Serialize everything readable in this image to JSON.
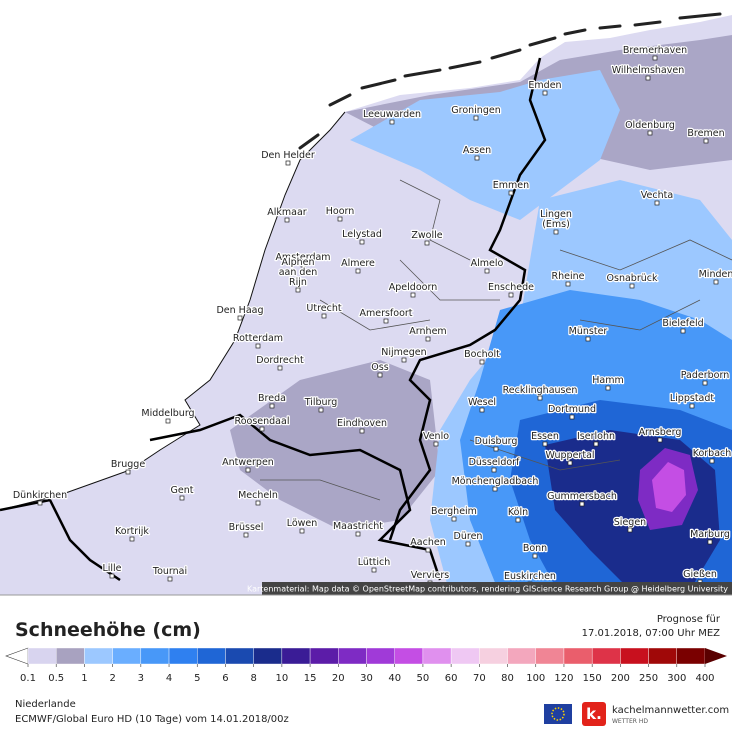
{
  "map": {
    "cities": [
      "Bremerhaven",
      "Wilhelmshaven",
      "Emden",
      "Leeuwarden",
      "Groningen",
      "Oldenburg",
      "Bremen",
      "Den Helder",
      "Assen",
      "Emmen",
      "Vechta",
      "Alkmaar",
      "Hoorn",
      [
        "Lingen",
        "(Ems)"
      ],
      "Lelystad",
      "Zwolle",
      "Amsterdam",
      "Almere",
      "Almelo",
      "Rheine",
      "Osnabrück",
      "Minden",
      [
        "Alphen",
        "aan den",
        "Rijn"
      ],
      "Apeldoorn",
      "Enschede",
      "Den Haag",
      "Utrecht",
      "Amersfoort",
      "Bielefeld",
      "Arnhem",
      "Münster",
      "Rotterdam",
      "Nijmegen",
      "Bocholt",
      "Dordrecht",
      "Oss",
      "Paderborn",
      "Hamm",
      "Recklinghausen",
      "Wesel",
      "Lippstadt",
      "Middelburg",
      "Breda",
      "Tilburg",
      "Dortmund",
      "Roosendaal",
      "Eindhoven",
      "Arnsberg",
      "Essen",
      "Iserlohn",
      "Venlo",
      "Duisburg",
      "Korbach",
      "Düsseldorf",
      "Wuppertal",
      "Brugge",
      "Antwerpen",
      "Mönchengladbach",
      "Gent",
      "Mecheln",
      "Gummersbach",
      "Dünkirchen",
      "Bergheim",
      "Köln",
      "Siegen",
      "Kortrijk",
      "Brüssel",
      "Löwen",
      "Maastricht",
      "Düren",
      "Marburg",
      "Aachen",
      "Bonn",
      "Lüttich",
      "Lille",
      "Tournai",
      "Verviers",
      "Euskirchen",
      "Gießen"
    ],
    "attribution": "Kartenmaterial: Map data © OpenStreetMap contributors, rendering GIScience Research Group @ Heidelberg University"
  },
  "title": "Schneehöhe (cm)",
  "forecast_label": "Prognose für",
  "forecast_time": "17.01.2018, 07:00 Uhr MEZ",
  "legend": {
    "labels": [
      0.1,
      0.5,
      1,
      2,
      3,
      4,
      5,
      6,
      8,
      10,
      15,
      20,
      30,
      40,
      50,
      60,
      70,
      80,
      100,
      120,
      150,
      200,
      250,
      300,
      400
    ],
    "colors": [
      "#d8d4ef",
      "#a8a2c0",
      "#9cc8ff",
      "#6aaeff",
      "#4898f8",
      "#2f80f0",
      "#1f66d6",
      "#1a4ab0",
      "#1a2c8c",
      "#3a1c96",
      "#5c1ca8",
      "#7e2bc4",
      "#a03ad8",
      "#c44ee4",
      "#e090ee",
      "#efc8f3",
      "#f6d0e0",
      "#f3a7bd",
      "#f08595",
      "#ea5e6c",
      "#de3348",
      "#c8101e",
      "#a00808",
      "#7a0000"
    ],
    "below_color": "#ffffff",
    "above_color": "#5a0000"
  },
  "region": "Niederlande",
  "model": "ECMWF/Global Euro HD (10 Tage) vom 14.01.2018/00z",
  "logo": {
    "name": "kachelmannwetter.com",
    "tagline": "WETTER HD"
  }
}
